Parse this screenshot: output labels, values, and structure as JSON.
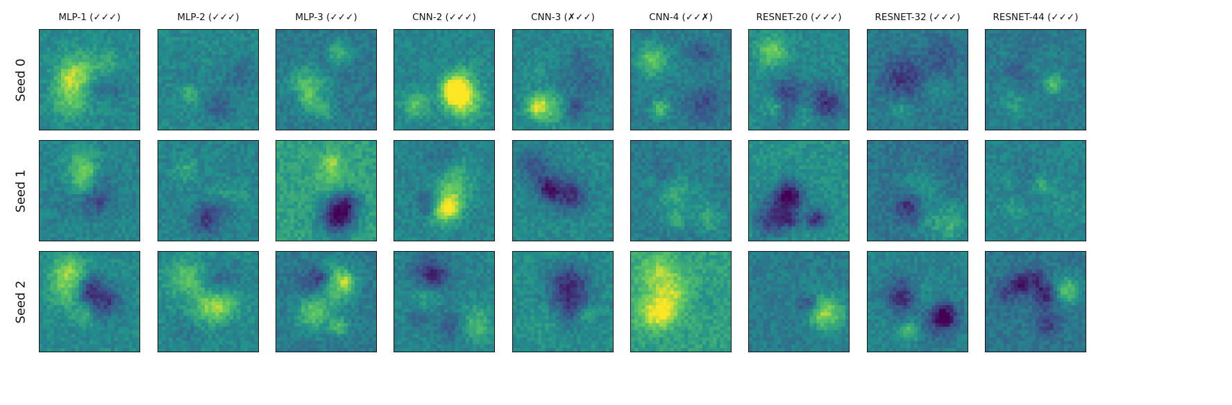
{
  "figure": {
    "columns": [
      "MLP-1 (✓✓✓)",
      "MLP-2 (✓✓✓)",
      "MLP-3 (✓✓✓)",
      "CNN-2 (✓✓✓)",
      "CNN-3 (✗✓✓)",
      "CNN-4 (✓✓✗)",
      "RESNET-20 (✓✓✓)",
      "RESNET-32 (✓✓✓)",
      "RESNET-44 (✓✓✓)"
    ],
    "rows": [
      "Seed 0",
      "Seed 1",
      "Seed 2"
    ],
    "colormap": [
      "#440154",
      "#3b528b",
      "#21918c",
      "#5ec962",
      "#fde725"
    ]
  }
}
